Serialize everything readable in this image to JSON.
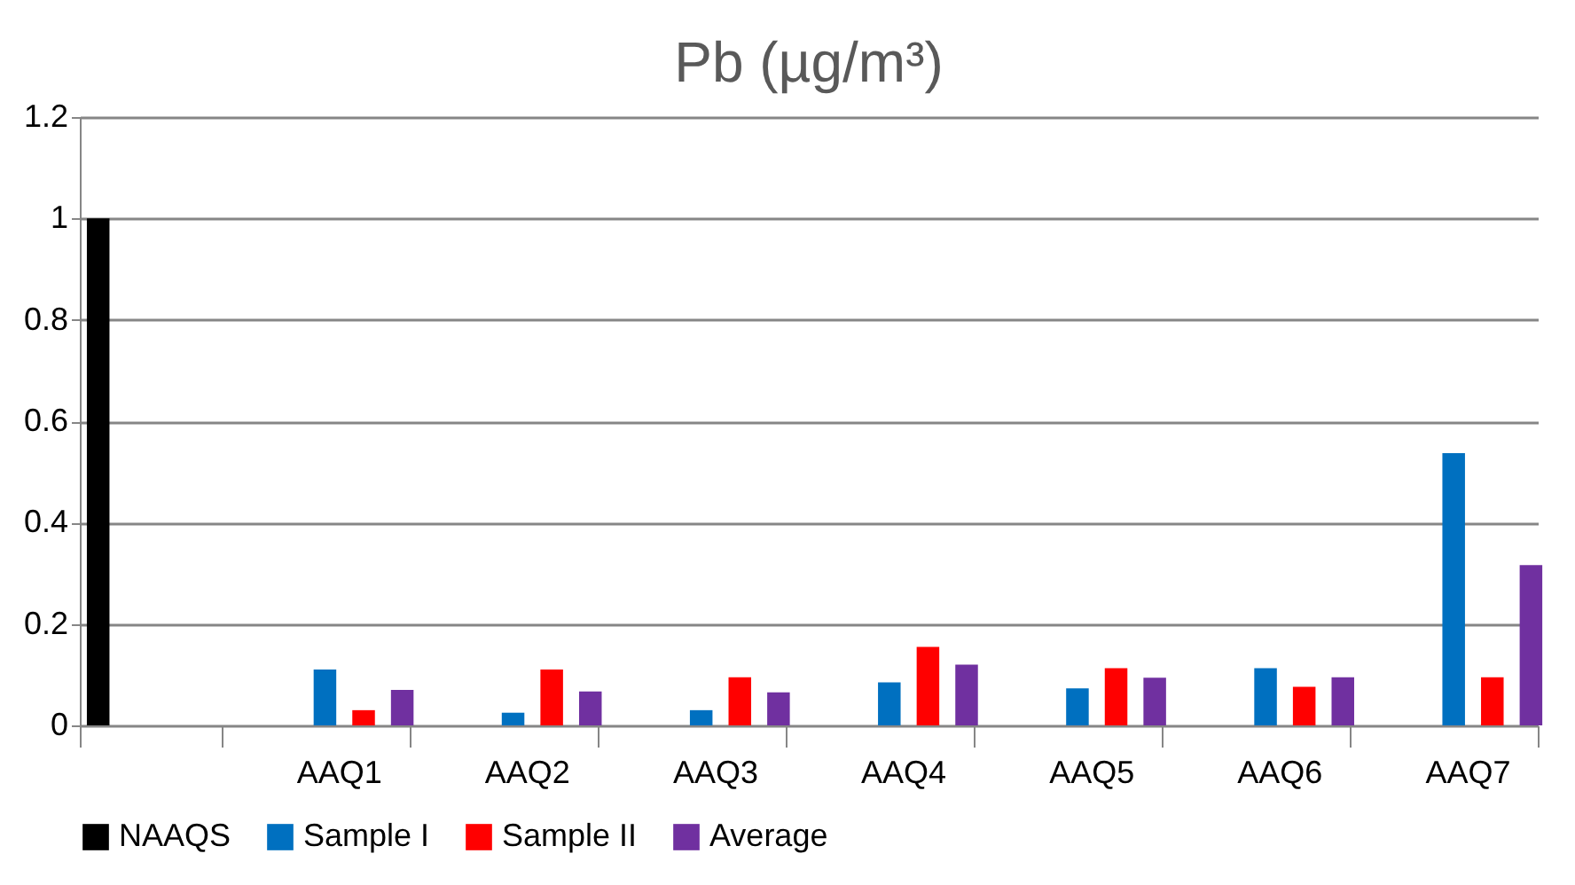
{
  "chart_data": {
    "type": "bar",
    "title": "Pb (µg/m³)",
    "categories": [
      null,
      "AAQ1",
      "AAQ2",
      "AAQ3",
      "AAQ4",
      "AAQ5",
      "AAQ6",
      "AAQ7"
    ],
    "series": [
      {
        "name": "NAAQS",
        "color": "#000000",
        "values": [
          1.0,
          null,
          null,
          null,
          null,
          null,
          null,
          null
        ]
      },
      {
        "name": "Sample I",
        "color": "#0070c0",
        "values": [
          null,
          0.11,
          0.025,
          0.03,
          0.085,
          0.073,
          0.113,
          0.537
        ]
      },
      {
        "name": "Sample II",
        "color": "#ff0000",
        "values": [
          null,
          0.03,
          0.11,
          0.095,
          0.155,
          0.113,
          0.076,
          0.095
        ]
      },
      {
        "name": "Average",
        "color": "#7030a0",
        "values": [
          null,
          0.07,
          0.067,
          0.065,
          0.12,
          0.094,
          0.095,
          0.316
        ]
      }
    ],
    "ylim": [
      0,
      1.2
    ],
    "yticks": [
      0,
      0.2,
      0.4,
      0.6,
      0.8,
      1,
      1.2
    ],
    "grid": "y",
    "legend": "bottom"
  }
}
